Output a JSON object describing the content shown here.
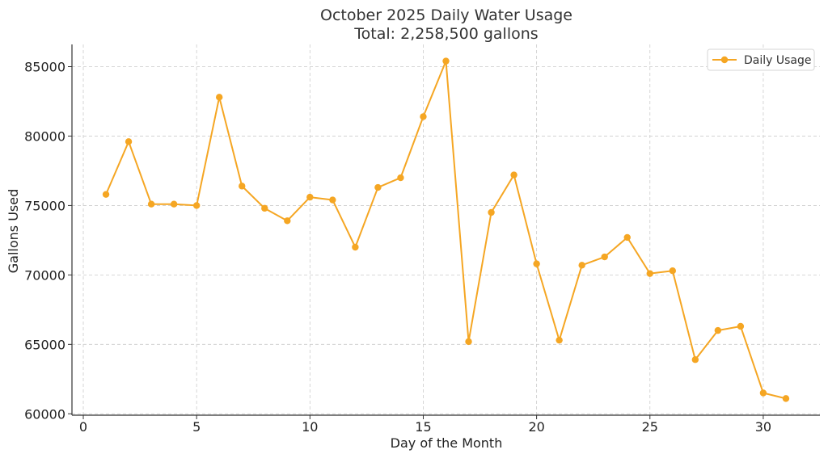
{
  "chart_data": {
    "type": "line",
    "title": "October 2025 Daily Water Usage",
    "subtitle": "Total: 2,258,500 gallons",
    "xlabel": "Day of the Month",
    "ylabel": "Gallons Used",
    "xlim": [
      -0.5,
      32.5
    ],
    "ylim": [
      59900,
      86600
    ],
    "xticks": [
      0,
      5,
      10,
      15,
      20,
      25,
      30
    ],
    "yticks": [
      60000,
      65000,
      70000,
      75000,
      80000,
      85000
    ],
    "grid": true,
    "legend_position": "top-right",
    "series": [
      {
        "name": "Daily Usage",
        "color": "#f5a623",
        "marker": "circle",
        "x": [
          1,
          2,
          3,
          4,
          5,
          6,
          7,
          8,
          9,
          10,
          11,
          12,
          13,
          14,
          15,
          16,
          17,
          18,
          19,
          20,
          21,
          22,
          23,
          24,
          25,
          26,
          27,
          28,
          29,
          30,
          31
        ],
        "values": [
          75800,
          79600,
          75100,
          75100,
          75000,
          82800,
          76400,
          74800,
          73900,
          75600,
          75400,
          72000,
          76300,
          77000,
          81400,
          85400,
          65200,
          74500,
          77200,
          70800,
          65300,
          70700,
          71300,
          72700,
          70100,
          70300,
          63900,
          66000,
          66300,
          61500,
          61100
        ]
      }
    ]
  }
}
